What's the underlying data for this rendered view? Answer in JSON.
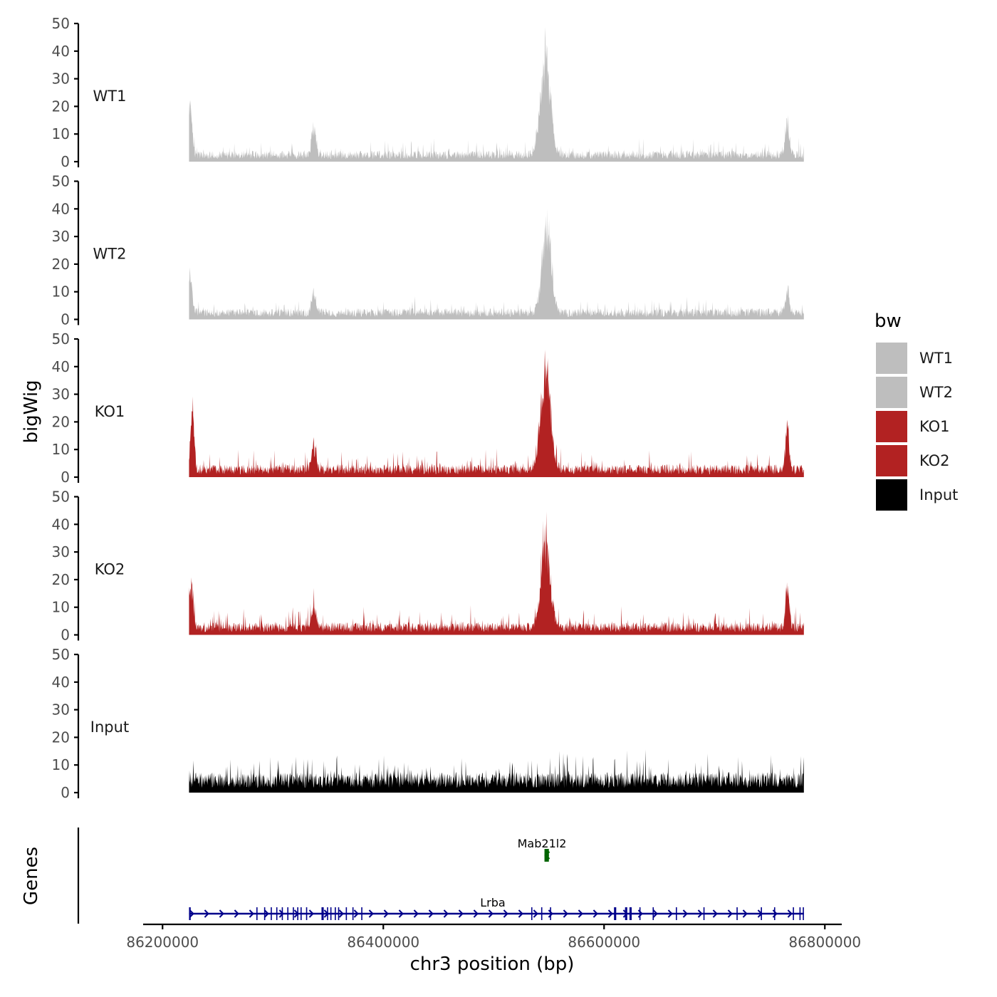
{
  "chart_data": {
    "type": "area",
    "title": "",
    "xlabel": "chr3 position (bp)",
    "ylabel": "bigWig",
    "gene_panel_label": "Genes",
    "xlim": [
      86185000,
      86805000
    ],
    "x_ticks": [
      {
        "value": 86200000,
        "label": "86200000"
      },
      {
        "value": 86400000,
        "label": "86400000"
      },
      {
        "value": 86600000,
        "label": "86600000"
      },
      {
        "value": 86800000,
        "label": "86800000"
      }
    ],
    "ylim": [
      0,
      50
    ],
    "y_ticks": [
      {
        "value": 0,
        "label": "0"
      },
      {
        "value": 10,
        "label": "10"
      },
      {
        "value": 20,
        "label": "20"
      },
      {
        "value": 30,
        "label": "30"
      },
      {
        "value": 40,
        "label": "40"
      },
      {
        "value": 50,
        "label": "50"
      }
    ],
    "data_range_bp": [
      86224000,
      86781000
    ],
    "legend": {
      "title": "bw",
      "position": "right",
      "entries": [
        {
          "label": "WT1",
          "color": "#bebebe"
        },
        {
          "label": "WT2",
          "color": "#bebebe"
        },
        {
          "label": "KO1",
          "color": "#b22222"
        },
        {
          "label": "KO2",
          "color": "#b22222"
        },
        {
          "label": "Input",
          "color": "#000000"
        }
      ]
    },
    "series": [
      {
        "name": "WT1",
        "color": "#bebebe",
        "baseline": 3.5,
        "noise": 3.5,
        "peaks": [
          {
            "x": 86225000,
            "height": 24,
            "width": 1800
          },
          {
            "x": 86337000,
            "height": 13,
            "width": 2000
          },
          {
            "x": 86547000,
            "height": 44,
            "width": 4500
          },
          {
            "x": 86766000,
            "height": 15,
            "width": 1800
          }
        ]
      },
      {
        "name": "WT2",
        "color": "#bebebe",
        "baseline": 3.5,
        "noise": 3.2,
        "peaks": [
          {
            "x": 86225000,
            "height": 18,
            "width": 1800
          },
          {
            "x": 86337000,
            "height": 8,
            "width": 2000
          },
          {
            "x": 86548000,
            "height": 40,
            "width": 4200
          },
          {
            "x": 86766000,
            "height": 10,
            "width": 1800
          }
        ]
      },
      {
        "name": "KO1",
        "color": "#b22222",
        "baseline": 4,
        "noise": 4.5,
        "peaks": [
          {
            "x": 86227000,
            "height": 30,
            "width": 1500
          },
          {
            "x": 86337000,
            "height": 11,
            "width": 2000
          },
          {
            "x": 86547000,
            "height": 45,
            "width": 4500
          },
          {
            "x": 86766000,
            "height": 20,
            "width": 1600
          }
        ]
      },
      {
        "name": "KO2",
        "color": "#b22222",
        "baseline": 4,
        "noise": 4.5,
        "peaks": [
          {
            "x": 86226000,
            "height": 20,
            "width": 1700
          },
          {
            "x": 86337000,
            "height": 9,
            "width": 2000
          },
          {
            "x": 86547000,
            "height": 39,
            "width": 4200
          },
          {
            "x": 86766000,
            "height": 19,
            "width": 1600
          }
        ]
      },
      {
        "name": "Input",
        "color": "#000000",
        "baseline": 6.5,
        "noise": 6,
        "peaks": []
      }
    ],
    "genes": [
      {
        "name": "Mab21l2",
        "color": "#006400",
        "strand": "-",
        "row": 1,
        "start": 86546000,
        "end": 86550000,
        "exons": [
          [
            86546000,
            86550000
          ]
        ]
      },
      {
        "name": "Lrba",
        "color": "#00008b",
        "strand": "+",
        "row": 0,
        "start": 86224000,
        "end": 86781000,
        "exons": [
          [
            86224000,
            86225500
          ],
          [
            86285000,
            86286000
          ],
          [
            86292000,
            86293000
          ],
          [
            86298000,
            86299000
          ],
          [
            86303000,
            86304000
          ],
          [
            86308000,
            86309000
          ],
          [
            86313000,
            86314000
          ],
          [
            86318000,
            86319000
          ],
          [
            86322000,
            86323000
          ],
          [
            86325000,
            86326000
          ],
          [
            86330000,
            86331000
          ],
          [
            86344000,
            86346000
          ],
          [
            86349000,
            86350000
          ],
          [
            86352000,
            86353000
          ],
          [
            86356000,
            86357000
          ],
          [
            86359000,
            86360000
          ],
          [
            86366000,
            86367000
          ],
          [
            86372000,
            86373000
          ],
          [
            86380000,
            86381000
          ],
          [
            86534000,
            86535000
          ],
          [
            86543000,
            86544000
          ],
          [
            86551000,
            86552000
          ],
          [
            86609000,
            86611000
          ],
          [
            86619000,
            86621000
          ],
          [
            86623000,
            86625000
          ],
          [
            86632000,
            86633000
          ],
          [
            86644000,
            86645000
          ],
          [
            86665000,
            86666000
          ],
          [
            86690000,
            86691000
          ],
          [
            86720000,
            86721000
          ],
          [
            86742000,
            86743000
          ],
          [
            86754000,
            86755000
          ],
          [
            86771000,
            86772000
          ],
          [
            86777000,
            86778000
          ],
          [
            86780000,
            86781000
          ]
        ]
      }
    ]
  }
}
